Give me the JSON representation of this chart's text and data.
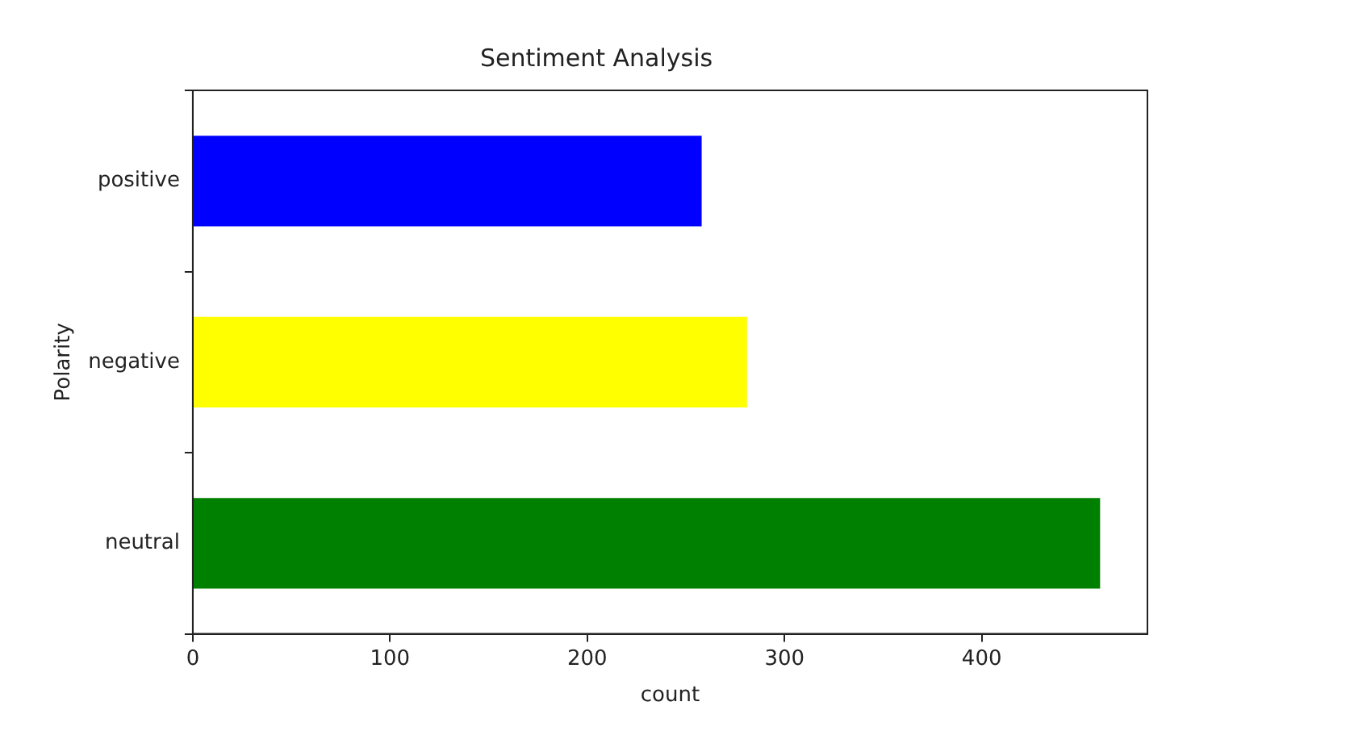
{
  "chart_data": {
    "type": "bar",
    "orientation": "horizontal",
    "title": "Sentiment Analysis",
    "xlabel": "count",
    "ylabel": "Polarity",
    "categories": [
      "positive",
      "negative",
      "neutral"
    ],
    "values": [
      258,
      281,
      460
    ],
    "colors": [
      "#0000ff",
      "#ffff00",
      "#008000"
    ],
    "xlim": [
      0,
      484
    ],
    "xticks": [
      0,
      100,
      200,
      300,
      400
    ],
    "grid": false,
    "legend": false
  }
}
